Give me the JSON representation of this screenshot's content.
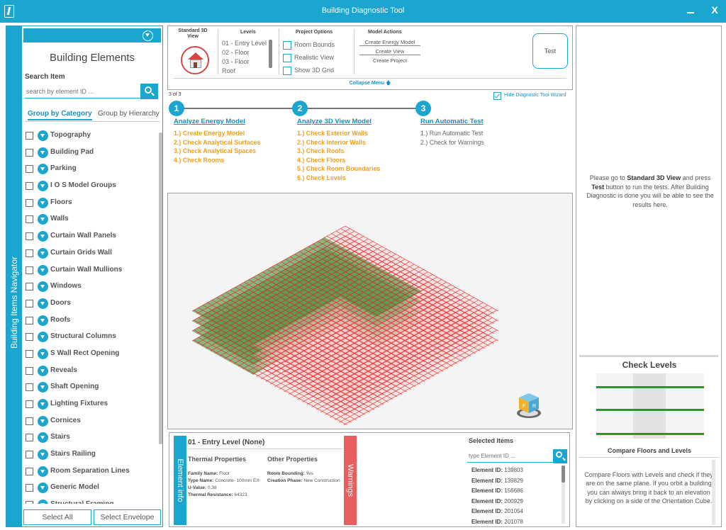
{
  "window": {
    "title": "Building Diagnostic Tool",
    "minimize_icon": "minimize-icon",
    "close_label": "X"
  },
  "navigator": {
    "tab_label": "Building Items Navigator",
    "title": "Building Elements",
    "search_label": "Search Item",
    "search_placeholder": "search by element ID ...",
    "group_tabs": [
      "Group by Category",
      "Group by Hierarchy"
    ],
    "items": [
      "Topography",
      "Building Pad",
      "Parking",
      "I O S Model Groups",
      "Floors",
      "Walls",
      "Curtain Wall Panels",
      "Curtain Grids Wall",
      "Curtain Wall Mullions",
      "Windows",
      "Doors",
      "Roofs",
      "Structural Columns",
      "S Wall Rect Opening",
      "Reveals",
      "Shaft Opening",
      "Lighting Fixtures",
      "Cornices",
      "Stairs",
      "Stairs Railing",
      "Room Separation Lines",
      "Generic Model",
      "Structural Framing"
    ],
    "select_all": "Select All",
    "select_envelope": "Select Envelope"
  },
  "toolbar": {
    "standard_view_label": "Standard 3D View",
    "levels_heading": "Levels",
    "levels": [
      "01 - Entry Level",
      "02 - Floor",
      "03 - Floor",
      "Roof"
    ],
    "project_options_heading": "Project Options",
    "project_options": [
      "Room Bounds",
      "Realistic View",
      "Show 3D Grid"
    ],
    "model_actions_heading": "Model Actions",
    "model_actions": [
      "Create Energy Model",
      "Create View",
      "Create Project"
    ],
    "test_label": "Test",
    "collapse_label": "Collapse Menu"
  },
  "wizard": {
    "step_count": "3 of 3",
    "hide_label": "Hide Diagnostic Tool Wizard",
    "steps": [
      {
        "num": "1",
        "title": "Analyze Energy Model",
        "items": [
          "1.) Create Energy Model",
          "2.) Check Analytical Surfaces",
          "3.) Check Analytical Spaces",
          "4.) Check Rooms"
        ]
      },
      {
        "num": "2",
        "title": "Analyze 3D View Model",
        "items": [
          "1.) Check Exterior Walls",
          "2.) Check Interior Walls",
          "3.) Check Roofs",
          "4.) Check Floors",
          "5.) Check Room Boundaries",
          "6.) Check Levels"
        ]
      },
      {
        "num": "3",
        "title": "Run Automatic Test",
        "items": [
          "1.) Run Automatic Test",
          "2.) Check for Warnings"
        ]
      }
    ]
  },
  "element_info": {
    "tab_label": "Element info",
    "level_title": "01 - Entry Level (None)",
    "thermal_heading": "Thermal Properties",
    "other_heading": "Other Properties",
    "thermal": [
      {
        "k": "Family Name:",
        "v": "Floor"
      },
      {
        "k": "Type Name:",
        "v": "Concrete- 100mm EX"
      },
      {
        "k": "U-Value:",
        "v": "0.38"
      },
      {
        "k": "Thermal Resistance:",
        "v": "64323"
      }
    ],
    "other": [
      {
        "k": "Room Bounding:",
        "v": "Yes"
      },
      {
        "k": "Creation Phase:",
        "v": "New Construction"
      }
    ],
    "warnings_label": "Warnings"
  },
  "selected": {
    "heading": "Selected Items",
    "search_placeholder": "type Element ID ...",
    "id_label": "Element ID:",
    "ids": [
      "139803",
      "139829",
      "156686",
      "200929",
      "201054",
      "201078"
    ]
  },
  "results": {
    "message_pre": "Please go to ",
    "message_bold1": "Standard 3D View",
    "message_mid": " and press ",
    "message_bold2": "Test",
    "message_post": " button to run the tests. After Building Diagnostic is done you will be able to see the results here.",
    "check_heading": "Check Levels",
    "compare_heading": "Compare Floors and Levels",
    "compare_desc": "Compare Floors with Levels and check if they are on the same plane. If you orbit a building you can always bring it back to an elevation by clicking on a side of the Orientation Cube."
  },
  "colors": {
    "accent": "#1aa6cf",
    "orange": "#f0a020",
    "warning": "#e85e5e",
    "grid_red": "#e82020",
    "floor_green": "#2f8f2f"
  }
}
